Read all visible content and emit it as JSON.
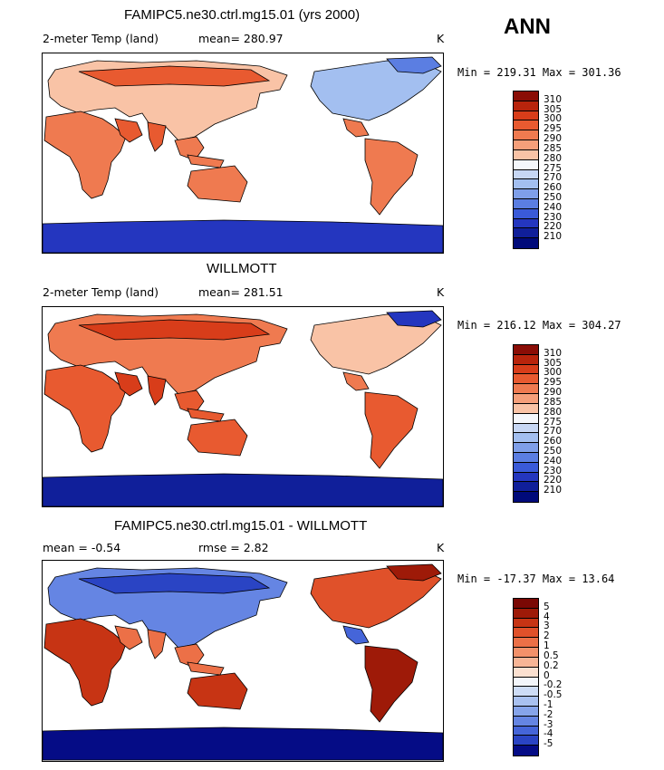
{
  "season": "ANN",
  "colors": {
    "warm": [
      "#fbe4d4",
      "#f9c3a6",
      "#f59f7a",
      "#ef7a50",
      "#e85a30",
      "#d83d1a",
      "#b8240c",
      "#8a0d06"
    ],
    "cool": [
      "#f4f7fb",
      "#c7d7f4",
      "#a3bff0",
      "#7f9fe9",
      "#5b7ee2",
      "#3a5ad8",
      "#2436bf",
      "#101f9a",
      "#000a7a"
    ],
    "diff_pos": [
      "#fbe0d0",
      "#f7b596",
      "#f3916a",
      "#ec7047",
      "#e0512a",
      "#c73414",
      "#9e1a08",
      "#7a0804"
    ],
    "diff_neg": [
      "#f3f6fb",
      "#cddcf6",
      "#a9c1f0",
      "#86a4ea",
      "#6585e3",
      "#4565d9",
      "#2a44c4",
      "#1624a3",
      "#050c86"
    ]
  },
  "panels": [
    {
      "title": "FAMIPC5.ne30.ctrl.mg15.01 (yrs 2000)",
      "left_label": "2-meter Temp (land)",
      "center_label": "mean=  280.97",
      "units": "K",
      "minmax": "Min = 219.31 Max = 301.36",
      "colorbar_labels": [
        "310",
        "305",
        "300",
        "295",
        "290",
        "285",
        "280",
        "275",
        "270",
        "260",
        "250",
        "240",
        "230",
        "220",
        "210"
      ]
    },
    {
      "title": "WILLMOTT",
      "left_label": "2-meter Temp (land)",
      "center_label": "mean=  281.51",
      "units": "K",
      "minmax": "Min = 216.12 Max = 304.27",
      "colorbar_labels": [
        "310",
        "305",
        "300",
        "295",
        "290",
        "285",
        "280",
        "275",
        "270",
        "260",
        "250",
        "240",
        "230",
        "220",
        "210"
      ]
    },
    {
      "title": "FAMIPC5.ne30.ctrl.mg15.01 - WILLMOTT",
      "left_label": "mean =   -0.54",
      "center_label": "rmse =    2.82",
      "units": "K",
      "minmax": "Min = -17.37 Max =  13.64",
      "colorbar_labels": [
        "5",
        "4",
        "3",
        "2",
        "1",
        "0.5",
        "0.2",
        "0",
        "-0.2",
        "-0.5",
        "-1",
        "-2",
        "-3",
        "-4",
        "-5"
      ]
    }
  ]
}
